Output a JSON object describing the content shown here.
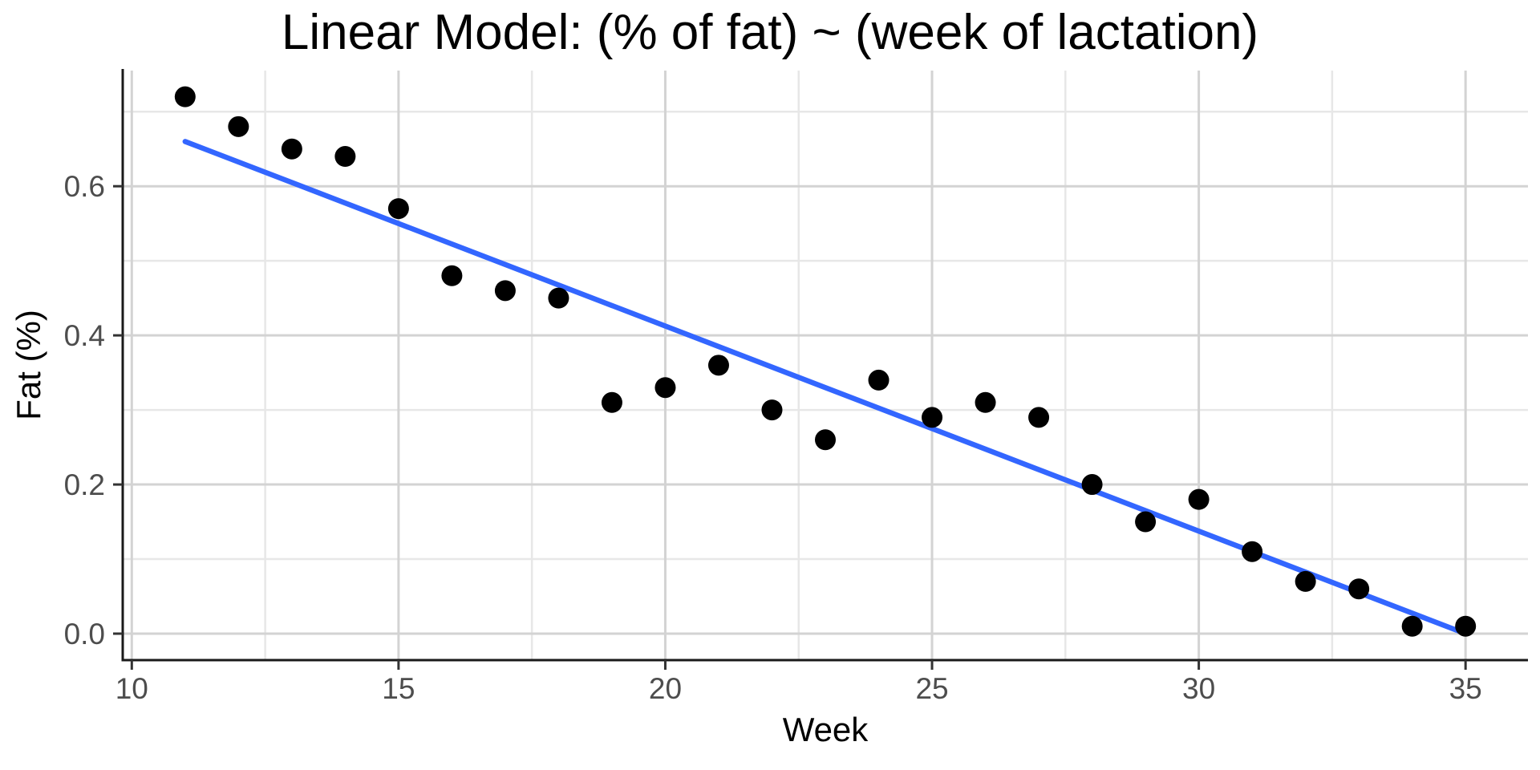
{
  "chart_data": {
    "type": "scatter",
    "title": "Linear Model: (% of fat) ~ (week of lactation)",
    "xlabel": "Week",
    "ylabel": "Fat (%)",
    "x": [
      11,
      12,
      13,
      14,
      15,
      16,
      17,
      18,
      19,
      20,
      21,
      22,
      23,
      24,
      25,
      26,
      27,
      28,
      29,
      30,
      31,
      32,
      33,
      34,
      35
    ],
    "y": [
      0.72,
      0.68,
      0.65,
      0.64,
      0.57,
      0.48,
      0.46,
      0.45,
      0.31,
      0.33,
      0.36,
      0.3,
      0.26,
      0.34,
      0.29,
      0.31,
      0.29,
      0.2,
      0.15,
      0.18,
      0.11,
      0.07,
      0.06,
      0.01,
      0.01
    ],
    "fit_line": {
      "x": [
        11,
        35
      ],
      "y": [
        0.66,
        0.0
      ]
    },
    "xlim": [
      9.83,
      36.17
    ],
    "ylim": [
      -0.0355,
      0.7551
    ],
    "x_ticks": [
      10,
      15,
      20,
      25,
      30,
      35
    ],
    "x_tick_labels": [
      "10",
      "15",
      "20",
      "25",
      "30",
      "35"
    ],
    "y_ticks": [
      0.0,
      0.2,
      0.4,
      0.6
    ],
    "y_tick_labels": [
      "0.0",
      "0.2",
      "0.4",
      "0.6"
    ],
    "x_minor_gridlines": [
      12.5,
      17.5,
      22.5,
      27.5,
      32.5
    ],
    "y_minor_gridlines": [
      0.1,
      0.3,
      0.5,
      0.7
    ],
    "grid": true,
    "legend_position": "none",
    "colors": {
      "point": "#000000",
      "fit_line": "#3366FF",
      "grid_major": "#D3D3D3",
      "grid_minor": "#E7E7E7",
      "axis_line": "#1A1A1A",
      "tick_mark": "#333333",
      "tick_label": "#4D4D4D",
      "title": "#000000",
      "background": "#FFFFFF"
    }
  }
}
